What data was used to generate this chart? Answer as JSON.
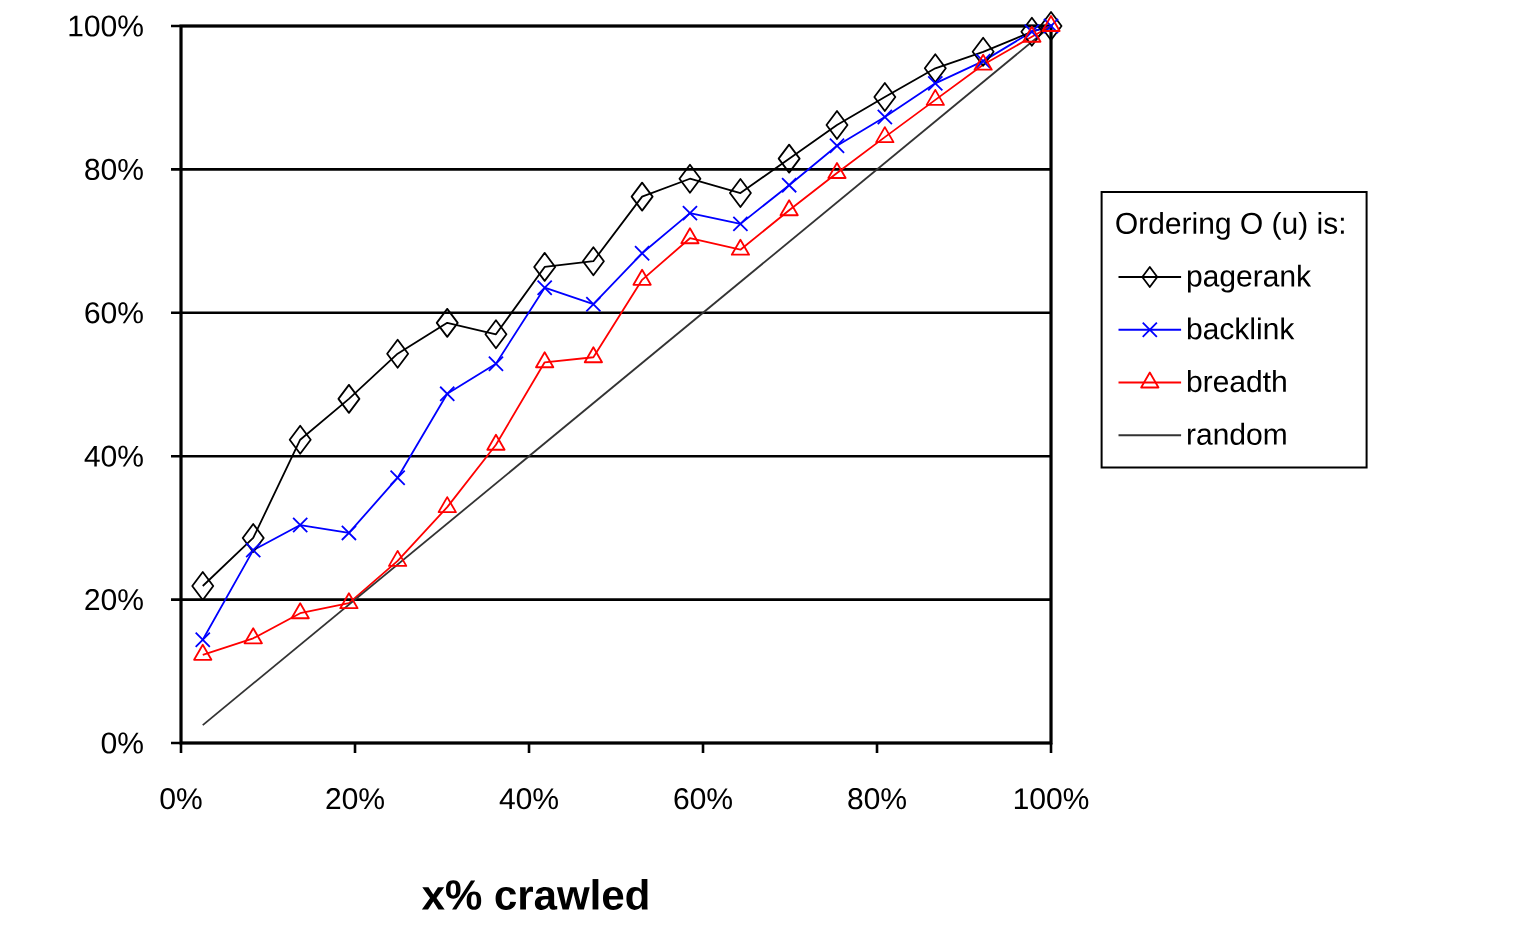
{
  "chart_data": {
    "type": "line",
    "xlabel": "x% crawled",
    "legend_title": "Ordering O (u) is:",
    "x": [
      2.5,
      8.3,
      13.7,
      19.3,
      24.9,
      30.6,
      36.2,
      41.8,
      47.4,
      53.0,
      58.5,
      64.3,
      69.9,
      75.4,
      80.9,
      86.7,
      92.2,
      97.8,
      100
    ],
    "series": [
      {
        "name": "pagerank",
        "color": "#000000",
        "marker": "diamond",
        "values": [
          21.9,
          28.6,
          42.3,
          48,
          54.3,
          58.6,
          57,
          66.4,
          67.2,
          76.2,
          78.7,
          76.7,
          81.5,
          86.2,
          90.1,
          94.1,
          96.4,
          99.2,
          100
        ]
      },
      {
        "name": "backlink",
        "color": "#0000ff",
        "marker": "cross",
        "values": [
          14.4,
          26.9,
          30.4,
          29.3,
          37,
          48.7,
          52.9,
          63.5,
          61.2,
          68.3,
          73.9,
          72.4,
          77.8,
          83.3,
          87.3,
          92,
          95.1,
          99.2,
          100
        ]
      },
      {
        "name": "breadth",
        "color": "#ff0000",
        "marker": "triangle",
        "values": [
          12.3,
          14.6,
          18.1,
          19.5,
          25.4,
          32.9,
          41.6,
          53.1,
          53.8,
          64.6,
          70.4,
          68.8,
          74.3,
          79.5,
          84.5,
          89.7,
          94.6,
          98.5,
          100
        ]
      },
      {
        "name": "random",
        "color": "#333333",
        "marker": "none",
        "x": [
          2.5,
          100
        ],
        "values": [
          2.5,
          100
        ]
      }
    ],
    "xlim": [
      0,
      100
    ],
    "ylim": [
      0,
      100
    ],
    "xticks": [
      {
        "value": 0,
        "label": "0%"
      },
      {
        "value": 20,
        "label": "20%"
      },
      {
        "value": 40,
        "label": "40%"
      },
      {
        "value": 60,
        "label": "60%"
      },
      {
        "value": 80,
        "label": "80%"
      },
      {
        "value": 100,
        "label": "100%"
      }
    ],
    "yticks": [
      {
        "value": 0,
        "label": "0%"
      },
      {
        "value": 20,
        "label": "20%"
      },
      {
        "value": 40,
        "label": "40%"
      },
      {
        "value": 60,
        "label": "60%"
      },
      {
        "value": 80,
        "label": "80%"
      },
      {
        "value": 100,
        "label": "100%"
      }
    ],
    "grid": "y",
    "legend": "right"
  }
}
